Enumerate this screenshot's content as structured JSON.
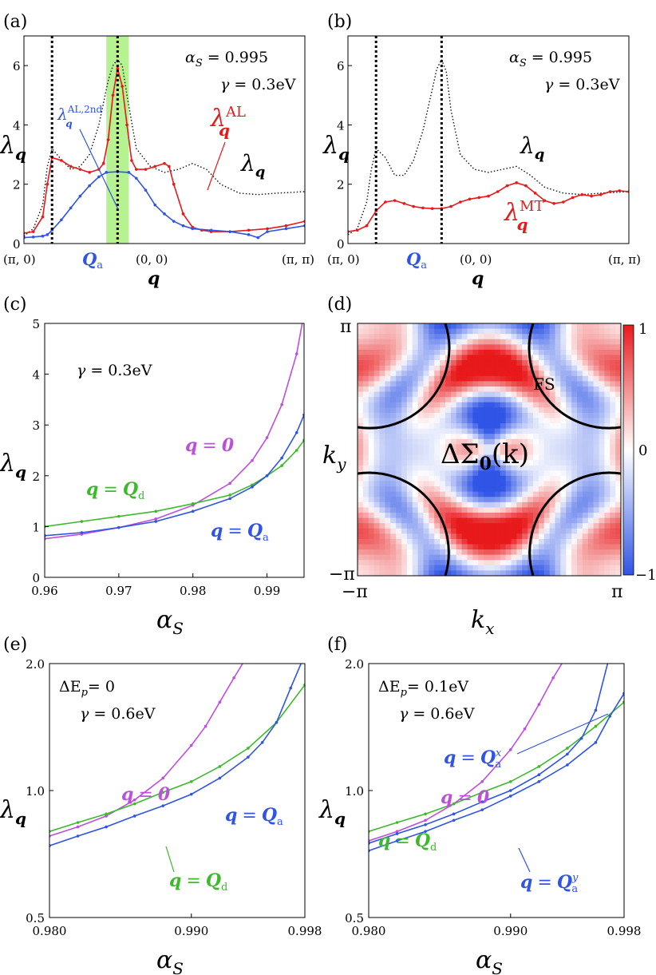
{
  "colors": {
    "red": "#e8191b",
    "blue": "#2f54e6",
    "purple": "#bd4fdf",
    "green": "#3cba2c",
    "black": "#111111",
    "band": "#b6f194"
  },
  "labels": {
    "a": "(a)",
    "b": "(b)",
    "c": "(c)",
    "d": "(d)",
    "e": "(e)",
    "f": "(f)"
  },
  "common": {
    "lambda": "λ",
    "q": "q",
    "alphaS": "α",
    "S": "S",
    "equals": "=",
    "qaxis": {
      "pi0": "(π, 0)",
      "Qa": "Q",
      "Qa_sub": "a",
      "zero": "(0, 0)",
      "pipi": "(π, π)",
      "qsym": "q"
    }
  },
  "chart_data": [
    {
      "id": "a",
      "type": "line",
      "xlabel": "q",
      "ylabel": "λ_q",
      "ylim": [
        0,
        7
      ],
      "yticks": [
        "0",
        "2",
        "4",
        "6"
      ],
      "annotations": {
        "alpha": "α_S = 0.995",
        "alpha_val": "0.995",
        "gamma": "γ = 0.3eV",
        "gamma_lhs": "γ",
        "gamma_val": "0.3eV",
        "AL": "λ_q^AL",
        "AL_sup": "AL",
        "AL2": "λ_q^AL,2nd",
        "AL2_sup": "AL,2nd",
        "lam": "λ_q"
      },
      "shaded_band": [
        -0.12,
        0.12
      ],
      "x_range": [
        -1,
        2
      ],
      "markers_x": [
        -0.7,
        0
      ],
      "series": [
        {
          "name": "λ_q",
          "color": "black",
          "dotted": true,
          "x": [
            -1,
            -0.9,
            -0.8,
            -0.75,
            -0.7,
            -0.62,
            -0.5,
            -0.4,
            -0.3,
            -0.2,
            -0.1,
            -0.05,
            0,
            0.05,
            0.1,
            0.2,
            0.35,
            0.5,
            0.65,
            0.8,
            0.95,
            1.1,
            1.3,
            1.5,
            1.7,
            2
          ],
          "y": [
            0.25,
            0.5,
            1.3,
            2.6,
            3.2,
            2.9,
            2.5,
            2.6,
            3.0,
            4.0,
            5.5,
            6.0,
            6.2,
            6.0,
            5.0,
            3.2,
            2.6,
            2.4,
            2.5,
            2.7,
            2.5,
            2.0,
            1.7,
            1.65,
            1.7,
            1.75
          ]
        },
        {
          "name": "λ_q^AL",
          "color": "red",
          "markers": true,
          "x": [
            -1,
            -0.9,
            -0.8,
            -0.75,
            -0.7,
            -0.6,
            -0.5,
            -0.4,
            -0.3,
            -0.2,
            -0.15,
            -0.1,
            -0.05,
            0,
            0.05,
            0.1,
            0.15,
            0.2,
            0.3,
            0.4,
            0.5,
            0.55,
            0.6,
            0.7,
            0.8,
            0.9,
            1.0,
            1.2,
            1.4,
            1.6,
            1.8,
            2
          ],
          "y": [
            0.35,
            0.4,
            0.9,
            2.0,
            2.9,
            2.8,
            2.6,
            2.5,
            2.4,
            2.5,
            2.7,
            3.5,
            5.0,
            5.9,
            5.3,
            4.0,
            2.8,
            2.5,
            2.5,
            2.6,
            2.7,
            2.6,
            2.0,
            1.0,
            0.55,
            0.45,
            0.4,
            0.4,
            0.45,
            0.5,
            0.6,
            0.75
          ]
        },
        {
          "name": "λ_q^AL,2nd",
          "color": "blue",
          "markers": true,
          "x": [
            -1,
            -0.9,
            -0.8,
            -0.75,
            -0.7,
            -0.6,
            -0.5,
            -0.4,
            -0.3,
            -0.2,
            -0.12,
            0,
            0.12,
            0.2,
            0.3,
            0.4,
            0.5,
            0.6,
            0.7,
            0.8,
            1.0,
            1.2,
            1.4,
            1.5,
            1.6,
            1.8,
            2
          ],
          "y": [
            0.2,
            0.22,
            0.25,
            0.3,
            0.45,
            0.8,
            1.2,
            1.6,
            1.95,
            2.25,
            2.4,
            2.42,
            2.4,
            2.2,
            1.8,
            1.3,
            1.0,
            0.75,
            0.6,
            0.5,
            0.45,
            0.4,
            0.3,
            0.2,
            0.4,
            0.5,
            0.6
          ]
        }
      ]
    },
    {
      "id": "b",
      "type": "line",
      "xlabel": "q",
      "ylabel": "λ_q",
      "ylim": [
        0,
        7
      ],
      "yticks": [
        "0",
        "2",
        "4",
        "6"
      ],
      "annotations": {
        "alpha": "α_S = 0.995",
        "alpha_val": "0.995",
        "gamma": "γ = 0.3eV",
        "gamma_lhs": "γ",
        "gamma_val": "0.3eV",
        "MT": "λ_q^MT",
        "MT_sup": "MT",
        "lam": "λ_q"
      },
      "x_range": [
        -1,
        2
      ],
      "markers_x": [
        -0.7,
        0
      ],
      "series": [
        {
          "name": "λ_q",
          "color": "black",
          "dotted": true,
          "x": [
            -1,
            -0.9,
            -0.8,
            -0.75,
            -0.7,
            -0.6,
            -0.5,
            -0.4,
            -0.3,
            -0.2,
            -0.1,
            -0.05,
            0,
            0.05,
            0.1,
            0.2,
            0.35,
            0.5,
            0.65,
            0.8,
            0.95,
            1.1,
            1.3,
            1.5,
            1.7,
            2
          ],
          "y": [
            0.3,
            0.5,
            1.4,
            2.5,
            3.2,
            2.9,
            2.3,
            2.3,
            2.8,
            3.8,
            5.2,
            5.9,
            6.2,
            5.8,
            4.5,
            3.0,
            2.5,
            2.4,
            2.5,
            2.6,
            2.3,
            1.9,
            1.7,
            1.65,
            1.7,
            1.75
          ]
        },
        {
          "name": "λ_q^MT",
          "color": "red",
          "markers": true,
          "x": [
            -1,
            -0.9,
            -0.8,
            -0.7,
            -0.6,
            -0.5,
            -0.4,
            -0.3,
            -0.2,
            -0.1,
            0,
            0.1,
            0.2,
            0.3,
            0.4,
            0.5,
            0.6,
            0.7,
            0.8,
            0.9,
            1.0,
            1.1,
            1.2,
            1.3,
            1.4,
            1.5,
            1.6,
            1.7,
            1.8,
            1.9,
            2
          ],
          "y": [
            0.4,
            0.45,
            0.6,
            1.1,
            1.4,
            1.45,
            1.35,
            1.25,
            1.2,
            1.18,
            1.18,
            1.25,
            1.4,
            1.5,
            1.55,
            1.6,
            1.75,
            1.95,
            2.05,
            1.95,
            1.7,
            1.45,
            1.35,
            1.4,
            1.55,
            1.65,
            1.6,
            1.65,
            1.75,
            1.78,
            1.75
          ]
        }
      ]
    },
    {
      "id": "c",
      "type": "line",
      "xlabel": "α_S",
      "ylabel": "λ_q",
      "xlim": [
        0.96,
        0.995
      ],
      "ylim": [
        0,
        5
      ],
      "xticks": [
        "0.96",
        "0.97",
        "0.98",
        "0.99"
      ],
      "yticks": [
        "0",
        "1",
        "2",
        "3",
        "4",
        "5"
      ],
      "annotations": {
        "gamma": "γ = 0.3eV",
        "gamma_lhs": "γ",
        "gamma_val": "0.3eV",
        "q0": "q = 0",
        "qd": "q = Q_d",
        "qa": "q = Q_a",
        "zero": "0",
        "sub_d": "d",
        "sub_a": "a"
      },
      "series": [
        {
          "name": "q = 0",
          "color": "purple",
          "x": [
            0.96,
            0.965,
            0.97,
            0.975,
            0.98,
            0.985,
            0.988,
            0.99,
            0.992,
            0.994,
            0.995
          ],
          "y": [
            0.76,
            0.85,
            0.98,
            1.15,
            1.42,
            1.85,
            2.3,
            2.75,
            3.4,
            4.4,
            5.2
          ]
        },
        {
          "name": "q = Q_d",
          "color": "green",
          "x": [
            0.96,
            0.965,
            0.97,
            0.975,
            0.98,
            0.985,
            0.988,
            0.99,
            0.992,
            0.994,
            0.995
          ],
          "y": [
            1.0,
            1.1,
            1.2,
            1.3,
            1.45,
            1.62,
            1.82,
            2.0,
            2.2,
            2.5,
            2.7
          ]
        },
        {
          "name": "q = Q_a",
          "color": "blue",
          "x": [
            0.96,
            0.965,
            0.97,
            0.975,
            0.98,
            0.985,
            0.988,
            0.99,
            0.992,
            0.994,
            0.995
          ],
          "y": [
            0.82,
            0.88,
            0.98,
            1.1,
            1.3,
            1.55,
            1.78,
            2.0,
            2.35,
            2.85,
            3.2
          ]
        }
      ]
    },
    {
      "id": "d",
      "type": "heatmap",
      "xlabel": "k_x",
      "ylabel": "k_y",
      "xticks": [
        "−π",
        "π"
      ],
      "yticks": [
        "π",
        "−π"
      ],
      "colorbar": {
        "max": "1",
        "mid": "0",
        "min": "−1"
      },
      "annotations": {
        "fs": "FS",
        "sigma": "ΔΣ_0(k)",
        "sigma_main": "ΔΣ",
        "sigma_sub": "0",
        "sigma_arg": "(k)"
      }
    },
    {
      "id": "e",
      "type": "line",
      "xlabel": "α_S",
      "ylabel": "λ_q",
      "xlim": [
        0.98,
        0.998
      ],
      "ylim": [
        0.5,
        2.0
      ],
      "xticks": [
        "0.980",
        "0.990",
        "0.998"
      ],
      "yticks": [
        "0.5",
        "1.0",
        "2.0"
      ],
      "annotations": {
        "dEp": "ΔE_p = 0",
        "dEp_lhs": "ΔE",
        "dEp_sub": "p",
        "dEp_val": "= 0",
        "gamma": "γ = 0.6eV",
        "gamma_lhs": "γ",
        "gamma_val": "0.6eV",
        "q0": "q = 0",
        "qa": "q = Q_a",
        "qd": "q = Q_d",
        "zero": "0",
        "sub_a": "a",
        "sub_d": "d"
      },
      "series": [
        {
          "name": "q = 0",
          "color": "purple",
          "x": [
            0.98,
            0.982,
            0.984,
            0.986,
            0.988,
            0.99,
            0.991,
            0.992,
            0.993,
            0.994
          ],
          "y": [
            0.78,
            0.82,
            0.87,
            0.95,
            1.07,
            1.28,
            1.42,
            1.62,
            1.85,
            2.1
          ]
        },
        {
          "name": "q = Q_d",
          "color": "green",
          "x": [
            0.98,
            0.982,
            0.984,
            0.986,
            0.988,
            0.99,
            0.992,
            0.994,
            0.996,
            0.998
          ],
          "y": [
            0.8,
            0.84,
            0.88,
            0.93,
            0.99,
            1.05,
            1.14,
            1.26,
            1.45,
            1.78
          ]
        },
        {
          "name": "q = Q_a",
          "color": "blue",
          "x": [
            0.98,
            0.982,
            0.984,
            0.986,
            0.988,
            0.99,
            0.992,
            0.994,
            0.995,
            0.996,
            0.997,
            0.998
          ],
          "y": [
            0.74,
            0.78,
            0.82,
            0.87,
            0.92,
            0.98,
            1.07,
            1.2,
            1.3,
            1.45,
            1.75,
            2.1
          ]
        }
      ]
    },
    {
      "id": "f",
      "type": "line",
      "xlabel": "α_S",
      "ylabel": "λ_q",
      "xlim": [
        0.98,
        0.998
      ],
      "ylim": [
        0.5,
        2.0
      ],
      "xticks": [
        "0.980",
        "0.990",
        "0.998"
      ],
      "yticks": [
        "0.5",
        "1.0",
        "2.0"
      ],
      "annotations": {
        "dEp": "ΔE_p = 0.1eV",
        "dEp_lhs": "ΔE",
        "dEp_sub": "p",
        "dEp_val": "= 0.1eV",
        "gamma": "γ = 0.6eV",
        "gamma_lhs": "γ",
        "gamma_val": "0.6eV",
        "qax": "q = Q_a^x",
        "q0": "q = 0",
        "qd": "q = Q_d",
        "qay": "q = Q_a^y",
        "zero": "0",
        "sub_a": "a",
        "sub_d": "d",
        "sup_x": "x",
        "sup_y": "y"
      },
      "series": [
        {
          "name": "q = 0",
          "color": "purple",
          "x": [
            0.98,
            0.982,
            0.984,
            0.986,
            0.988,
            0.99,
            0.991,
            0.992,
            0.993,
            0.994
          ],
          "y": [
            0.76,
            0.8,
            0.85,
            0.93,
            1.05,
            1.25,
            1.4,
            1.6,
            1.85,
            2.1
          ]
        },
        {
          "name": "q = Q_d",
          "color": "green",
          "x": [
            0.98,
            0.982,
            0.984,
            0.986,
            0.988,
            0.99,
            0.992,
            0.994,
            0.996,
            0.998
          ],
          "y": [
            0.8,
            0.84,
            0.88,
            0.93,
            0.99,
            1.05,
            1.14,
            1.26,
            1.42,
            1.62
          ]
        },
        {
          "name": "q = Q_a^x",
          "color": "blue",
          "x": [
            0.98,
            0.982,
            0.984,
            0.986,
            0.988,
            0.99,
            0.992,
            0.994,
            0.995,
            0.996,
            0.997
          ],
          "y": [
            0.75,
            0.79,
            0.83,
            0.88,
            0.94,
            1.0,
            1.09,
            1.22,
            1.33,
            1.55,
            2.1
          ]
        },
        {
          "name": "q = Q_a^y",
          "color": "blue",
          "x": [
            0.98,
            0.982,
            0.984,
            0.986,
            0.988,
            0.99,
            0.992,
            0.994,
            0.996,
            0.997,
            0.998
          ],
          "y": [
            0.72,
            0.76,
            0.8,
            0.85,
            0.9,
            0.97,
            1.05,
            1.15,
            1.3,
            1.5,
            1.7
          ]
        }
      ]
    }
  ]
}
